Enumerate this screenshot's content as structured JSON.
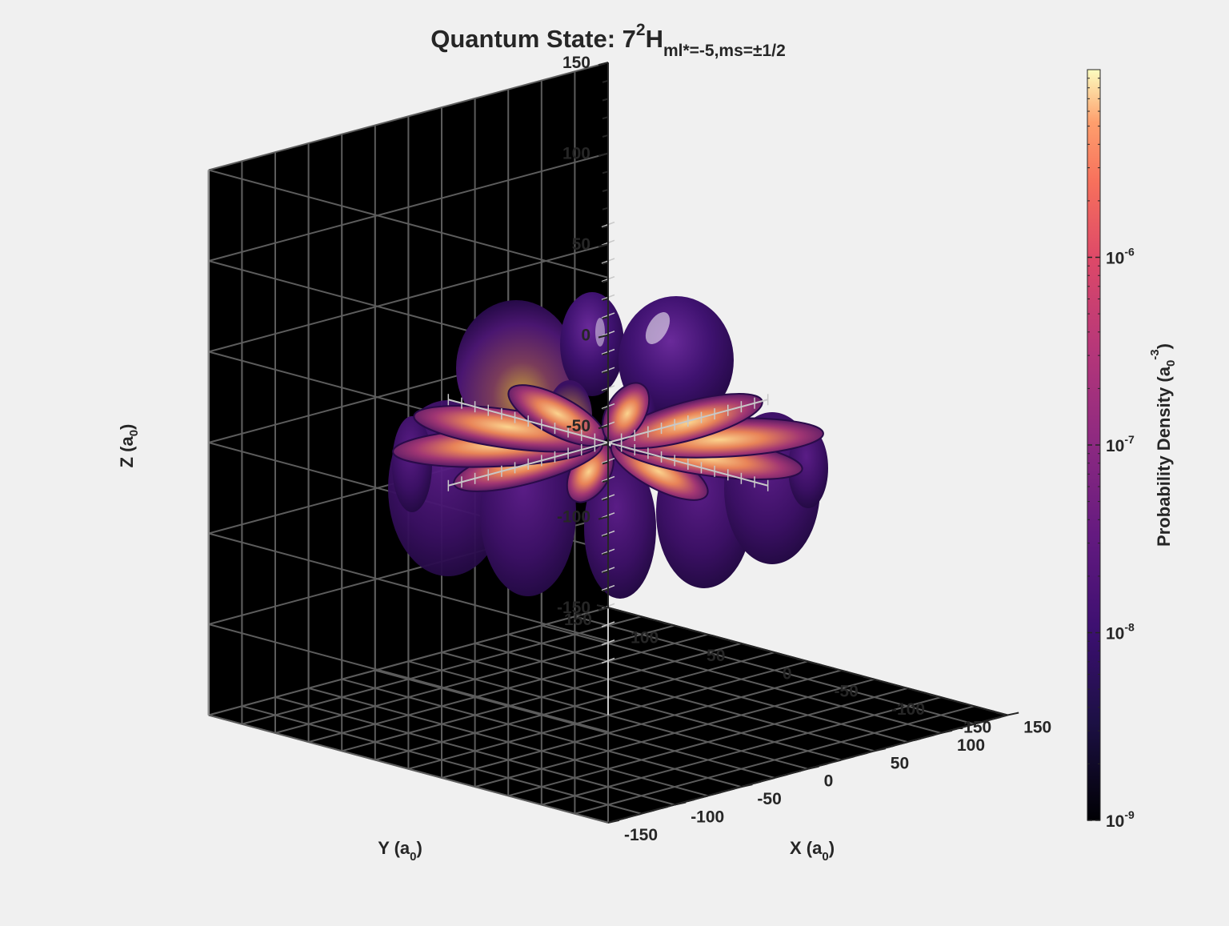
{
  "chart_data": {
    "type": "3d-surface",
    "title": {
      "main": "Quantum State: 7",
      "sup": "2",
      "letter": "H",
      "sub": "ml*=-5,ms=±1/2"
    },
    "axes": {
      "x": {
        "label_main": "X (a",
        "label_sub": "0",
        "label_end": ")",
        "range": [
          -150,
          150
        ],
        "ticks": [
          -150,
          -100,
          -50,
          0,
          50,
          100,
          150
        ]
      },
      "y": {
        "label_main": "Y (a",
        "label_sub": "0",
        "label_end": ")",
        "range": [
          -150,
          150
        ],
        "ticks": [
          -150,
          -100,
          -50,
          0,
          50,
          100,
          150
        ]
      },
      "z": {
        "label_main": "Z (a",
        "label_sub": "0",
        "label_end": ")",
        "range": [
          -150,
          150
        ],
        "ticks": [
          -150,
          -100,
          -50,
          0,
          50,
          100,
          150
        ]
      }
    },
    "grid": true,
    "background": "#000000",
    "colorbar": {
      "label_main": "Probability Density (a",
      "label_sub": "0",
      "label_sup": "-3",
      "label_end": ")",
      "scale": "log",
      "range": [
        1e-09,
        1e-05
      ],
      "colormap": "magma",
      "ticks": [
        {
          "base": "10",
          "exp": "-9",
          "value": 1e-09
        },
        {
          "base": "10",
          "exp": "-8",
          "value": 1e-08
        },
        {
          "base": "10",
          "exp": "-7",
          "value": 1e-07
        },
        {
          "base": "10",
          "exp": "-6",
          "value": 1e-06
        }
      ]
    },
    "orbital": {
      "lobes_equatorial": 10,
      "azimuthal_ml": -5
    }
  }
}
